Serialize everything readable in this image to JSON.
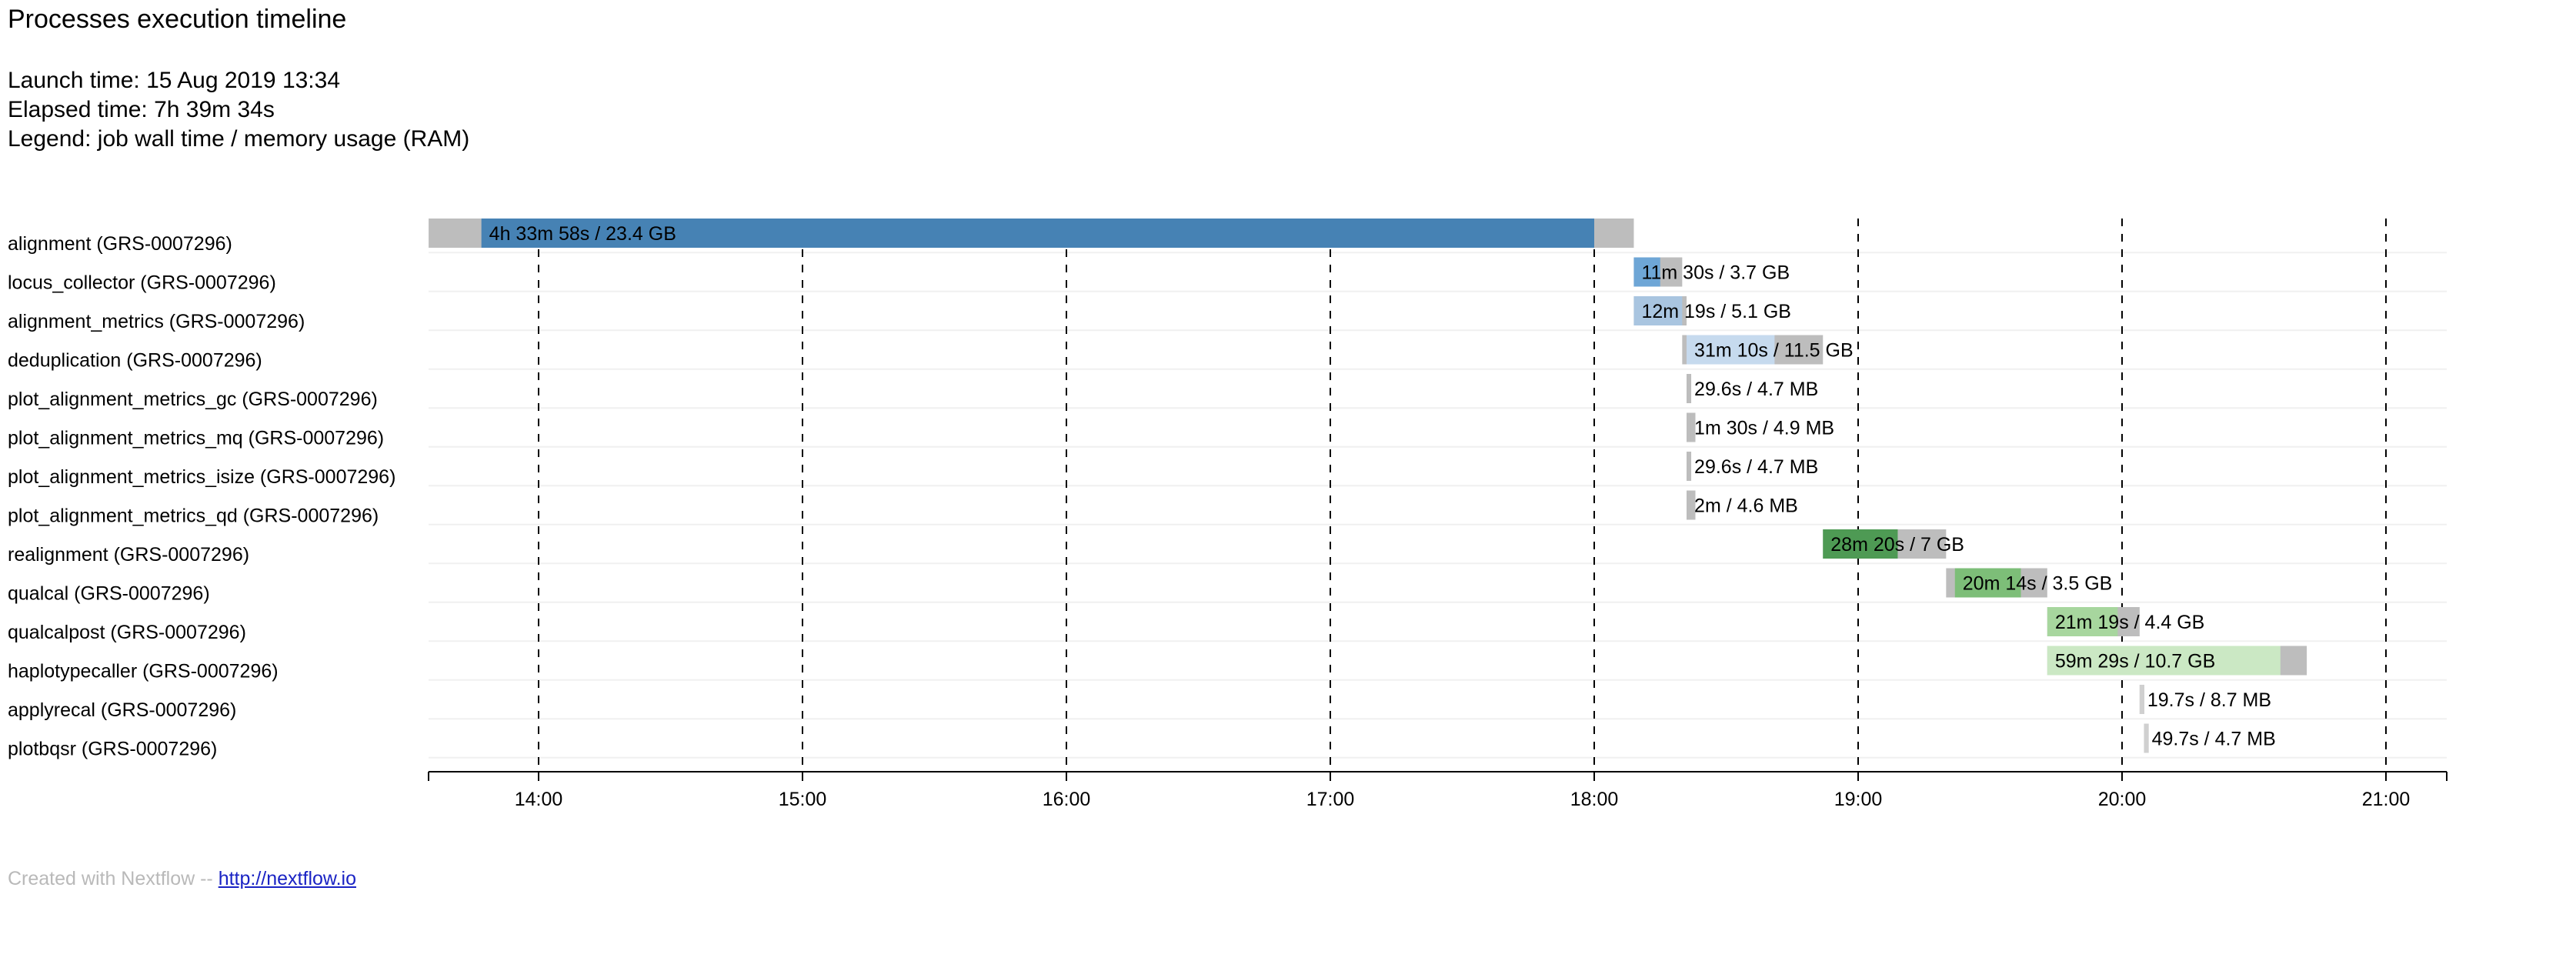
{
  "header": {
    "title": "Processes execution timeline",
    "launch_time": "Launch time: 15 Aug 2019 13:34",
    "elapsed_time": "Elapsed time: 7h 39m 34s",
    "legend": "Legend: job wall time / memory usage (RAM)"
  },
  "footer": {
    "created_with": "Created with Nextflow --",
    "link_text": "http://nextflow.io"
  },
  "chart_data": {
    "type": "timeline",
    "x_axis": {
      "unit": "clock time",
      "range": [
        "13:35",
        "21:15"
      ],
      "ticks": [
        "14:00",
        "15:00",
        "16:00",
        "17:00",
        "18:00",
        "19:00",
        "20:00",
        "21:00"
      ],
      "grid": "dashed vertical lines at hourly ticks"
    },
    "colors": {
      "pending": "#bdbdbd",
      "alignment": "#4682b4",
      "locus_collector": "#6ea6d6",
      "alignment_metrics": "#a9c5e0",
      "deduplication": "#c6daee",
      "plot": "#bdbdbd",
      "realignment": "#4e9a54",
      "qualcal": "#7dbe78",
      "qualcalpost": "#a7d69e",
      "haplotypecaller": "#cbe8c4",
      "applyrecal": "#d0d0d0",
      "plotbqsr": "#d0d0d0"
    },
    "tasks": [
      {
        "name": "alignment (GRS-0007296)",
        "submit": "13:35",
        "start": "13:47",
        "end": "18:00",
        "complete": "18:09",
        "label": "4h 33m 58s / 23.4 GB",
        "color": "alignment"
      },
      {
        "name": "locus_collector (GRS-0007296)",
        "submit": "18:09",
        "start": "18:09",
        "end": "18:15",
        "complete": "18:20",
        "label": "11m 30s / 3.7 GB",
        "color": "locus_collector"
      },
      {
        "name": "alignment_metrics (GRS-0007296)",
        "submit": "18:09",
        "start": "18:09",
        "end": "18:20",
        "complete": "18:21",
        "label": "12m 19s / 5.1 GB",
        "color": "alignment_metrics"
      },
      {
        "name": "deduplication (GRS-0007296)",
        "submit": "18:20",
        "start": "18:21",
        "end": "18:41",
        "complete": "18:52",
        "label": "31m 10s / 11.5 GB",
        "color": "deduplication"
      },
      {
        "name": "plot_alignment_metrics_gc (GRS-0007296)",
        "submit": "18:21",
        "start": "18:21",
        "end": "18:22",
        "complete": "18:22",
        "label": "29.6s / 4.7 MB",
        "color": "plot"
      },
      {
        "name": "plot_alignment_metrics_mq (GRS-0007296)",
        "submit": "18:21",
        "start": "18:21",
        "end": "18:22",
        "complete": "18:23",
        "label": "1m 30s / 4.9 MB",
        "color": "plot"
      },
      {
        "name": "plot_alignment_metrics_isize (GRS-0007296)",
        "submit": "18:21",
        "start": "18:21",
        "end": "18:22",
        "complete": "18:22",
        "label": "29.6s / 4.7 MB",
        "color": "plot"
      },
      {
        "name": "plot_alignment_metrics_qd (GRS-0007296)",
        "submit": "18:21",
        "start": "18:21",
        "end": "18:22",
        "complete": "18:23",
        "label": "2m / 4.6 MB",
        "color": "plot"
      },
      {
        "name": "realignment (GRS-0007296)",
        "submit": "18:52",
        "start": "18:52",
        "end": "19:09",
        "complete": "19:20",
        "label": "28m 20s / 7 GB",
        "color": "realignment"
      },
      {
        "name": "qualcal (GRS-0007296)",
        "submit": "19:20",
        "start": "19:22",
        "end": "19:37",
        "complete": "19:43",
        "label": "20m 14s / 3.5 GB",
        "color": "qualcal"
      },
      {
        "name": "qualcalpost (GRS-0007296)",
        "submit": "19:43",
        "start": "19:43",
        "end": "19:59",
        "complete": "20:04",
        "label": "21m 19s / 4.4 GB",
        "color": "qualcalpost"
      },
      {
        "name": "haplotypecaller (GRS-0007296)",
        "submit": "19:43",
        "start": "19:43",
        "end": "20:36",
        "complete": "20:42",
        "label": "59m 29s / 10.7 GB",
        "color": "haplotypecaller"
      },
      {
        "name": "applyrecal (GRS-0007296)",
        "submit": "20:04",
        "start": "20:04",
        "end": "20:05",
        "complete": "20:05",
        "label": "19.7s / 8.7 MB",
        "color": "applyrecal"
      },
      {
        "name": "plotbqsr (GRS-0007296)",
        "submit": "20:05",
        "start": "20:05",
        "end": "20:06",
        "complete": "20:06",
        "label": "49.7s / 4.7 MB",
        "color": "plotbqsr"
      }
    ]
  }
}
